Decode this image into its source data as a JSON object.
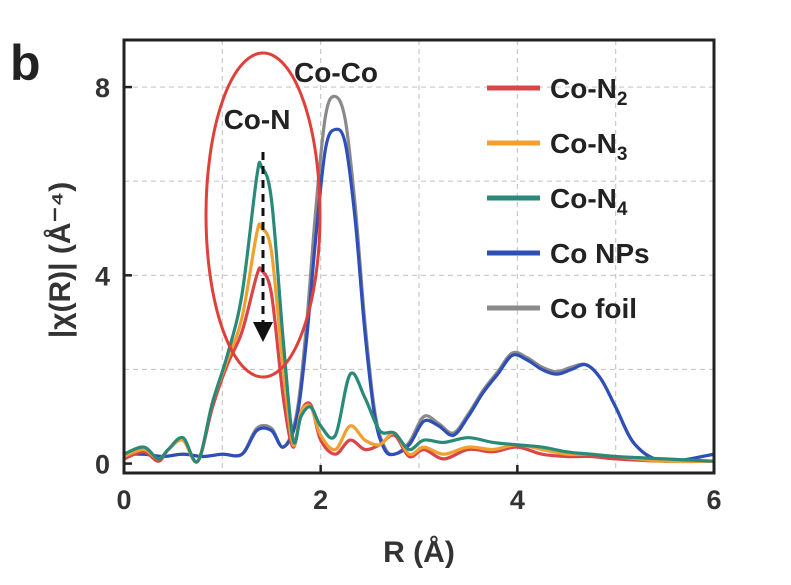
{
  "panel_label": "b",
  "chart_data": {
    "type": "line",
    "xlabel": "R (Å)",
    "ylabel": "|χ(R)| (Å⁻⁴)",
    "xlim": [
      0,
      6
    ],
    "ylim": [
      -0.2,
      9
    ],
    "xticks": [
      0,
      2,
      4,
      6
    ],
    "yticks": [
      0,
      4,
      8
    ],
    "grid": true,
    "legend_position": "top-right",
    "annotations": [
      "Co-N",
      "Co-Co"
    ],
    "series": [
      {
        "name": "Co-N2",
        "name_main": "Co-N",
        "name_sub": "2",
        "color": "#d9464a",
        "x": [
          0,
          0.2,
          0.35,
          0.45,
          0.6,
          0.75,
          0.9,
          1.05,
          1.2,
          1.35,
          1.4,
          1.5,
          1.62,
          1.72,
          1.8,
          1.9,
          2.0,
          2.15,
          2.3,
          2.45,
          2.6,
          2.75,
          2.9,
          3.05,
          3.25,
          3.5,
          3.75,
          4.0,
          4.25,
          4.5,
          4.75,
          5.0,
          5.5,
          6.0
        ],
        "y": [
          0.1,
          0.25,
          0.05,
          0.3,
          0.5,
          0.05,
          1.2,
          2.1,
          2.8,
          4.0,
          4.1,
          3.6,
          1.4,
          0.35,
          1.1,
          1.25,
          0.5,
          0.2,
          0.5,
          0.3,
          0.4,
          0.6,
          0.15,
          0.3,
          0.1,
          0.3,
          0.25,
          0.35,
          0.2,
          0.15,
          0.15,
          0.1,
          0.05,
          0.05
        ]
      },
      {
        "name": "Co-N3",
        "name_main": "Co-N",
        "name_sub": "3",
        "color": "#f0a030",
        "x": [
          0,
          0.2,
          0.35,
          0.45,
          0.6,
          0.75,
          0.9,
          1.05,
          1.2,
          1.35,
          1.4,
          1.5,
          1.62,
          1.72,
          1.8,
          1.9,
          2.0,
          2.15,
          2.3,
          2.45,
          2.6,
          2.75,
          2.9,
          3.05,
          3.25,
          3.5,
          3.75,
          4.0,
          4.25,
          4.5,
          4.75,
          5.0,
          5.5,
          6.0
        ],
        "y": [
          0.15,
          0.3,
          0.1,
          0.3,
          0.5,
          0.05,
          1.3,
          2.2,
          3.1,
          4.9,
          5.0,
          4.5,
          2.0,
          0.4,
          1.1,
          1.2,
          0.6,
          0.3,
          0.8,
          0.5,
          0.4,
          0.65,
          0.2,
          0.35,
          0.2,
          0.35,
          0.3,
          0.4,
          0.3,
          0.2,
          0.2,
          0.15,
          0.05,
          0.05
        ]
      },
      {
        "name": "Co-N4",
        "name_main": "Co-N",
        "name_sub": "4",
        "color": "#2a8a7a",
        "x": [
          0,
          0.2,
          0.35,
          0.45,
          0.6,
          0.75,
          0.9,
          1.05,
          1.2,
          1.35,
          1.4,
          1.5,
          1.62,
          1.72,
          1.8,
          1.9,
          2.0,
          2.15,
          2.3,
          2.45,
          2.6,
          2.75,
          2.9,
          3.05,
          3.25,
          3.5,
          3.75,
          4.0,
          4.25,
          4.5,
          4.75,
          5.0,
          5.5,
          6.0
        ],
        "y": [
          0.2,
          0.35,
          0.1,
          0.3,
          0.55,
          0.05,
          1.3,
          2.3,
          3.6,
          6.1,
          6.3,
          5.6,
          2.6,
          0.5,
          1.0,
          1.2,
          0.8,
          0.6,
          1.9,
          1.4,
          0.7,
          0.65,
          0.3,
          0.5,
          0.45,
          0.55,
          0.45,
          0.4,
          0.35,
          0.25,
          0.2,
          0.15,
          0.1,
          0.05
        ]
      },
      {
        "name": "Co NPs",
        "name_main": "Co NPs",
        "name_sub": "",
        "color": "#2e4fb8",
        "x": [
          0,
          0.2,
          0.4,
          0.6,
          0.8,
          1.0,
          1.2,
          1.35,
          1.5,
          1.62,
          1.75,
          1.85,
          1.95,
          2.05,
          2.15,
          2.25,
          2.35,
          2.45,
          2.55,
          2.65,
          2.75,
          2.9,
          3.05,
          3.2,
          3.35,
          3.5,
          3.65,
          3.8,
          3.95,
          4.1,
          4.25,
          4.4,
          4.55,
          4.7,
          4.85,
          5.0,
          5.2,
          5.5,
          6.0
        ],
        "y": [
          0.2,
          0.2,
          0.15,
          0.2,
          0.15,
          0.2,
          0.2,
          0.7,
          0.7,
          0.35,
          0.9,
          2.5,
          4.8,
          6.7,
          7.1,
          6.8,
          5.2,
          2.8,
          1.0,
          0.3,
          0.2,
          0.4,
          0.9,
          0.8,
          0.6,
          1.0,
          1.5,
          1.9,
          2.3,
          2.2,
          2.0,
          1.9,
          2.0,
          2.1,
          1.8,
          1.2,
          0.4,
          0.05,
          0.2
        ]
      },
      {
        "name": "Co foil",
        "name_main": "Co foil",
        "name_sub": "",
        "color": "#8a8a8a",
        "x": [
          0,
          0.2,
          0.4,
          0.6,
          0.8,
          1.0,
          1.2,
          1.35,
          1.5,
          1.62,
          1.75,
          1.85,
          1.95,
          2.05,
          2.15,
          2.25,
          2.35,
          2.45,
          2.55,
          2.65,
          2.75,
          2.9,
          3.05,
          3.2,
          3.35,
          3.5,
          3.65,
          3.8,
          3.95,
          4.1,
          4.25,
          4.4,
          4.55,
          4.7,
          4.85,
          5.0,
          5.2,
          5.5,
          6.0
        ],
        "y": [
          0.2,
          0.2,
          0.15,
          0.2,
          0.15,
          0.2,
          0.2,
          0.75,
          0.75,
          0.35,
          1.0,
          2.8,
          5.4,
          7.4,
          7.8,
          7.3,
          5.5,
          3.0,
          1.1,
          0.35,
          0.2,
          0.45,
          1.0,
          0.85,
          0.65,
          1.05,
          1.55,
          1.95,
          2.35,
          2.25,
          2.05,
          1.95,
          2.05,
          2.1,
          1.8,
          1.2,
          0.4,
          0.05,
          0.2
        ]
      }
    ]
  }
}
